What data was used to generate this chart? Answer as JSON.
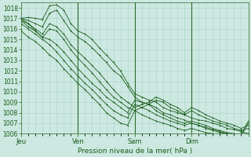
{
  "xlabel": "Pression niveau de la mer( hPa )",
  "ylim": [
    1006,
    1018.5
  ],
  "xlim": [
    0,
    96
  ],
  "yticks": [
    1006,
    1007,
    1008,
    1009,
    1010,
    1011,
    1012,
    1013,
    1014,
    1015,
    1016,
    1017,
    1018
  ],
  "xtick_positions": [
    0,
    24,
    48,
    72,
    96
  ],
  "xtick_labels": [
    "Jeu",
    "Ven",
    "Sam",
    "Dim",
    ""
  ],
  "background_color": "#cce8e0",
  "grid_color": "#aad4cc",
  "line_color": "#1a5c1a",
  "series": [
    {
      "x": [
        0,
        3,
        6,
        9,
        12,
        15,
        18,
        21,
        24,
        27,
        30,
        33,
        36,
        39,
        42,
        45,
        48,
        51,
        54,
        57,
        60,
        63,
        66,
        69,
        72,
        75,
        78,
        81,
        84,
        87,
        90,
        93,
        96
      ],
      "y": [
        1017.0,
        1017.1,
        1017.0,
        1016.9,
        1018.2,
        1018.3,
        1017.8,
        1016.5,
        1015.8,
        1015.5,
        1015.0,
        1014.2,
        1013.5,
        1012.8,
        1012.0,
        1010.8,
        1009.8,
        1009.5,
        1009.2,
        1009.0,
        1008.5,
        1008.2,
        1008.0,
        1007.8,
        1007.5,
        1007.3,
        1007.2,
        1007.0,
        1006.8,
        1006.5,
        1006.4,
        1006.2,
        1006.0
      ],
      "marker": "+"
    },
    {
      "x": [
        0,
        3,
        6,
        9,
        12,
        15,
        18,
        21,
        24,
        27,
        30,
        33,
        36,
        39,
        42,
        45,
        48,
        51,
        54,
        57,
        60,
        63,
        66,
        69,
        72,
        75,
        78,
        81,
        84,
        87,
        90,
        93,
        96
      ],
      "y": [
        1017.0,
        1016.8,
        1016.5,
        1016.2,
        1017.5,
        1017.8,
        1016.8,
        1015.8,
        1015.2,
        1014.8,
        1014.2,
        1013.5,
        1012.8,
        1012.0,
        1011.5,
        1010.5,
        1009.5,
        1009.0,
        1008.8,
        1008.5,
        1008.0,
        1007.8,
        1007.5,
        1007.3,
        1007.0,
        1006.8,
        1006.6,
        1006.4,
        1006.2,
        1006.0,
        1005.9,
        1005.8,
        1005.8
      ],
      "marker": "+"
    },
    {
      "x": [
        0,
        3,
        6,
        9,
        12,
        15,
        18,
        21,
        24,
        27,
        30,
        33,
        36,
        39,
        42,
        45,
        48,
        51,
        54,
        57,
        60,
        63,
        66,
        69,
        72,
        75,
        78,
        81,
        84,
        87,
        90,
        93,
        96
      ],
      "y": [
        1016.8,
        1016.5,
        1016.0,
        1015.5,
        1016.5,
        1016.2,
        1015.5,
        1014.5,
        1013.8,
        1013.2,
        1012.5,
        1011.8,
        1011.0,
        1010.2,
        1009.5,
        1009.0,
        1008.5,
        1008.8,
        1009.0,
        1009.5,
        1009.2,
        1008.8,
        1008.5,
        1008.0,
        1008.5,
        1008.2,
        1007.8,
        1007.5,
        1007.2,
        1007.0,
        1006.8,
        1006.5,
        1006.8
      ],
      "marker": "+"
    },
    {
      "x": [
        0,
        3,
        6,
        9,
        12,
        15,
        18,
        21,
        24,
        27,
        30,
        33,
        36,
        39,
        42,
        45,
        48,
        51,
        54,
        57,
        60,
        63,
        66,
        69,
        72,
        75,
        78,
        81,
        84,
        87,
        90,
        93,
        96
      ],
      "y": [
        1016.8,
        1016.2,
        1015.8,
        1015.2,
        1016.0,
        1015.8,
        1015.0,
        1014.0,
        1013.2,
        1012.5,
        1011.8,
        1011.0,
        1010.2,
        1009.5,
        1009.0,
        1008.5,
        1008.2,
        1008.5,
        1008.8,
        1009.2,
        1009.0,
        1008.5,
        1008.2,
        1007.8,
        1008.2,
        1007.8,
        1007.5,
        1007.2,
        1007.0,
        1006.8,
        1006.5,
        1006.3,
        1006.5
      ],
      "marker": "+"
    },
    {
      "x": [
        0,
        3,
        6,
        9,
        12,
        15,
        18,
        21,
        24,
        27,
        30,
        33,
        36,
        39,
        42,
        45,
        48,
        51,
        54,
        57,
        60,
        63,
        66,
        69,
        72,
        75,
        78,
        81,
        84,
        87,
        90,
        93,
        96
      ],
      "y": [
        1017.0,
        1016.5,
        1015.8,
        1015.2,
        1015.0,
        1014.5,
        1013.8,
        1013.0,
        1012.2,
        1011.5,
        1010.8,
        1010.2,
        1009.5,
        1009.0,
        1008.5,
        1008.0,
        1009.2,
        1009.0,
        1008.8,
        1008.2,
        1007.8,
        1007.5,
        1007.2,
        1007.0,
        1007.2,
        1007.0,
        1006.8,
        1006.5,
        1006.3,
        1006.1,
        1006.0,
        1005.9,
        1007.2
      ],
      "marker": "+"
    },
    {
      "x": [
        0,
        3,
        6,
        9,
        12,
        15,
        18,
        21,
        24,
        27,
        30,
        33,
        36,
        39,
        42,
        45,
        48,
        51,
        54,
        57,
        60,
        63,
        66,
        69,
        72,
        75,
        78,
        81,
        84,
        87,
        90,
        93,
        96
      ],
      "y": [
        1016.5,
        1016.0,
        1015.5,
        1015.0,
        1014.5,
        1013.8,
        1013.0,
        1012.2,
        1011.5,
        1010.8,
        1010.2,
        1009.5,
        1008.8,
        1008.2,
        1007.8,
        1007.5,
        1008.8,
        1008.5,
        1008.2,
        1007.8,
        1007.5,
        1007.2,
        1007.0,
        1006.8,
        1007.0,
        1006.8,
        1006.5,
        1006.3,
        1006.1,
        1006.0,
        1005.9,
        1005.8,
        1007.0
      ],
      "marker": "+"
    },
    {
      "x": [
        0,
        3,
        6,
        9,
        12,
        15,
        18,
        21,
        24,
        27,
        30,
        33,
        36,
        39,
        42,
        45,
        48,
        51,
        54,
        57,
        60,
        63,
        66,
        69,
        72,
        75,
        78,
        81,
        84,
        87,
        90,
        93,
        96
      ],
      "y": [
        1015.8,
        1015.2,
        1014.8,
        1014.2,
        1013.5,
        1013.0,
        1012.2,
        1011.5,
        1010.8,
        1010.2,
        1009.5,
        1008.8,
        1008.0,
        1007.5,
        1007.0,
        1006.8,
        1008.2,
        1007.8,
        1007.5,
        1007.2,
        1007.0,
        1006.8,
        1006.5,
        1006.3,
        1006.5,
        1006.3,
        1006.1,
        1006.0,
        1005.9,
        1005.8,
        1005.7,
        1005.6,
        1006.0
      ],
      "marker": "+"
    }
  ],
  "vlines": [
    24,
    48,
    72
  ],
  "fig_width": 3.2,
  "fig_height": 2.0,
  "dpi": 100
}
